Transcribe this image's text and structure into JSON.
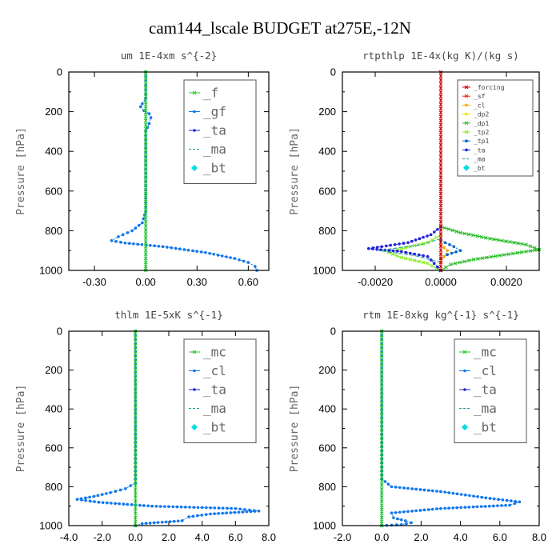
{
  "figure_title": "cam144_lscale  BUDGET at275E,-12N",
  "colors": {
    "f": "#22cc22",
    "gf": "#1177ee",
    "ta": "#2222dd",
    "ma": "#1a9aa0",
    "bt": "#00dddd",
    "forcing": "#cc0000",
    "sf": "#ee2200",
    "cl": "#ffaa00",
    "dp2": "#ffdd00",
    "dp1": "#22bb22",
    "tp2": "#88ee22",
    "tp1": "#0066cc",
    "mc": "#22cc22",
    "clb": "#1177ee"
  },
  "chart_data": [
    {
      "type": "line",
      "title": "um  1E-4xm s^{-2}",
      "ylabel": "Pressure [hPa]",
      "xlim": [
        -0.45,
        0.72
      ],
      "ylim": [
        1000,
        0
      ],
      "xticks": [
        "-0.30",
        "0.00",
        "0.30",
        "0.60"
      ],
      "xtick_values": [
        -0.3,
        0.0,
        0.3,
        0.6
      ],
      "yticks": [
        "0",
        "200",
        "400",
        "600",
        "800",
        "1000"
      ],
      "ytick_values": [
        0,
        200,
        400,
        600,
        800,
        1000
      ],
      "legend": {
        "position": "top-right",
        "size": "large",
        "entries": [
          "_f",
          "_gf",
          "_ta",
          "_ma",
          "_bt"
        ]
      },
      "series": [
        {
          "name": "_gf",
          "color_key": "gf",
          "marker": "dot",
          "points": [
            [
              0.0,
              0
            ],
            [
              0.0,
              130
            ],
            [
              -0.02,
              160
            ],
            [
              -0.03,
              175
            ],
            [
              -0.01,
              195
            ],
            [
              0.02,
              210
            ],
            [
              0.03,
              230
            ],
            [
              0.02,
              260
            ],
            [
              0.0,
              300
            ],
            [
              0.0,
              700
            ],
            [
              -0.02,
              760
            ],
            [
              -0.08,
              800
            ],
            [
              -0.16,
              830
            ],
            [
              -0.2,
              850
            ],
            [
              -0.12,
              862
            ],
            [
              0.1,
              880
            ],
            [
              0.35,
              910
            ],
            [
              0.52,
              940
            ],
            [
              0.6,
              960
            ],
            [
              0.64,
              980
            ],
            [
              0.65,
              1000
            ]
          ]
        },
        {
          "name": "_f",
          "color_key": "f",
          "marker": "x",
          "points": [
            [
              0.0,
              0
            ],
            [
              0.0,
              1000
            ]
          ]
        },
        {
          "name": "_ma",
          "color_key": "ma",
          "marker": "none",
          "points": [
            [
              0.0,
              0
            ],
            [
              0.0,
              1000
            ]
          ]
        }
      ]
    },
    {
      "type": "line",
      "title": "rtpthlp  1E-4x(kg K)/(kg s)",
      "ylabel": "Pressure [hPa]",
      "xlim": [
        -0.003,
        0.003
      ],
      "ylim": [
        1000,
        0
      ],
      "xticks": [
        "-0.0020",
        "0.0000",
        "0.0020"
      ],
      "xtick_values": [
        -0.002,
        0.0,
        0.002
      ],
      "yticks": [
        "0",
        "200",
        "400",
        "600",
        "800",
        "1000"
      ],
      "ytick_values": [
        0,
        200,
        400,
        600,
        800,
        1000
      ],
      "legend": {
        "position": "top-right",
        "size": "small",
        "entries": [
          "_forcing",
          "_sf",
          "_cl",
          "_dp2",
          "_dp1",
          "_tp2",
          "_tp1",
          "_ta",
          "_ma",
          "_bt"
        ]
      },
      "series": [
        {
          "name": "_dp1",
          "color_key": "dp1",
          "marker": "x",
          "points": [
            [
              0.0,
              780
            ],
            [
              0.0006,
              810
            ],
            [
              0.0015,
              840
            ],
            [
              0.0026,
              870
            ],
            [
              0.003,
              895
            ],
            [
              0.0022,
              915
            ],
            [
              0.001,
              945
            ],
            [
              0.0003,
              970
            ],
            [
              0.0,
              1000
            ]
          ]
        },
        {
          "name": "_tp2",
          "color_key": "tp2",
          "marker": "x",
          "points": [
            [
              0.0,
              820
            ],
            [
              -0.0004,
              860
            ],
            [
              -0.0012,
              890
            ],
            [
              -0.0016,
              910
            ],
            [
              -0.0012,
              935
            ],
            [
              -0.0004,
              965
            ],
            [
              0.0,
              1000
            ]
          ]
        },
        {
          "name": "_ta",
          "color_key": "ta",
          "marker": "dot",
          "points": [
            [
              0.0,
              780
            ],
            [
              -0.0003,
              820
            ],
            [
              -0.001,
              860
            ],
            [
              -0.0022,
              890
            ],
            [
              -0.0012,
              905
            ],
            [
              -0.0004,
              930
            ],
            [
              0.0,
              1000
            ]
          ]
        },
        {
          "name": "_ma",
          "color_key": "ma",
          "marker": "none",
          "points": [
            [
              0.0,
              840
            ],
            [
              -0.0006,
              870
            ],
            [
              -0.0019,
              900
            ],
            [
              -0.0008,
              925
            ],
            [
              0.0,
              960
            ]
          ]
        },
        {
          "name": "_tp1",
          "color_key": "tp1",
          "marker": "dot",
          "points": [
            [
              0.0,
              850
            ],
            [
              0.0004,
              880
            ],
            [
              0.0006,
              900
            ],
            [
              0.0002,
              920
            ],
            [
              0.0,
              940
            ]
          ]
        },
        {
          "name": "_cl",
          "color_key": "cl",
          "marker": "dot",
          "points": [
            [
              0.0,
              870
            ],
            [
              0.0002,
              900
            ],
            [
              0.0001,
              930
            ],
            [
              0.0,
              960
            ]
          ]
        },
        {
          "name": "_forcing",
          "color_key": "forcing",
          "marker": "x",
          "points": [
            [
              0.0,
              0
            ],
            [
              0.0,
              1000
            ]
          ]
        }
      ]
    },
    {
      "type": "line",
      "title": "thlm  1E-5xK s^{-1}",
      "ylabel": "Pressure [hPa]",
      "xlim": [
        -4.0,
        8.0
      ],
      "ylim": [
        1000,
        0
      ],
      "xticks": [
        "-4.0",
        "-2.0",
        "0.0",
        "2.0",
        "4.0",
        "6.0",
        "8.0"
      ],
      "xtick_values": [
        -4,
        -2,
        0,
        2,
        4,
        6,
        8
      ],
      "yticks": [
        "0",
        "200",
        "400",
        "600",
        "800",
        "1000"
      ],
      "ytick_values": [
        0,
        200,
        400,
        600,
        800,
        1000
      ],
      "legend": {
        "position": "top-right",
        "size": "large",
        "entries": [
          "_mc",
          "_cl",
          "_ta",
          "_ma",
          "_bt"
        ]
      },
      "series": [
        {
          "name": "_cl",
          "color_key": "gf",
          "marker": "dot",
          "points": [
            [
              0.0,
              0
            ],
            [
              0.0,
              780
            ],
            [
              -0.6,
              810
            ],
            [
              -1.5,
              830
            ],
            [
              -2.5,
              850
            ],
            [
              -3.5,
              865
            ],
            [
              -2.2,
              880
            ],
            [
              1.0,
              900
            ],
            [
              6.0,
              912
            ],
            [
              7.4,
              925
            ],
            [
              4.5,
              940
            ],
            [
              3.2,
              955
            ],
            [
              2.8,
              975
            ],
            [
              0.4,
              990
            ],
            [
              0.0,
              1000
            ]
          ]
        },
        {
          "name": "_mc",
          "color_key": "mc",
          "marker": "x",
          "points": [
            [
              0.0,
              0
            ],
            [
              0.0,
              1000
            ]
          ]
        },
        {
          "name": "_ma",
          "color_key": "ma",
          "marker": "none",
          "points": [
            [
              0.0,
              0
            ],
            [
              0.0,
              1000
            ]
          ]
        }
      ]
    },
    {
      "type": "line",
      "title": "rtm  1E-8xkg kg^{-1} s^{-1}",
      "ylabel": "Pressure [hPa]",
      "xlim": [
        -2.0,
        8.0
      ],
      "ylim": [
        1000,
        0
      ],
      "xticks": [
        "-2.0",
        "0.0",
        "2.0",
        "4.0",
        "6.0",
        "8.0"
      ],
      "xtick_values": [
        -2,
        0,
        2,
        4,
        6,
        8
      ],
      "yticks": [
        "0",
        "200",
        "400",
        "600",
        "800",
        "1000"
      ],
      "ytick_values": [
        0,
        200,
        400,
        600,
        800,
        1000
      ],
      "legend": {
        "position": "top-right",
        "size": "large",
        "entries": [
          "_mc",
          "_cl",
          "_ta",
          "_ma",
          "_bt"
        ]
      },
      "series": [
        {
          "name": "_cl",
          "color_key": "gf",
          "marker": "dot",
          "points": [
            [
              0.0,
              0
            ],
            [
              0.0,
              760
            ],
            [
              0.5,
              800
            ],
            [
              3.0,
              825
            ],
            [
              5.5,
              860
            ],
            [
              7.0,
              878
            ],
            [
              6.5,
              895
            ],
            [
              3.0,
              912
            ],
            [
              0.5,
              935
            ],
            [
              0.6,
              960
            ],
            [
              1.2,
              975
            ],
            [
              1.5,
              985
            ],
            [
              1.0,
              995
            ],
            [
              0.0,
              1000
            ]
          ]
        },
        {
          "name": "_mc",
          "color_key": "mc",
          "marker": "x",
          "points": [
            [
              0.0,
              0
            ],
            [
              0.0,
              1000
            ]
          ]
        },
        {
          "name": "_ma",
          "color_key": "ma",
          "marker": "none",
          "points": [
            [
              0.0,
              0
            ],
            [
              0.0,
              1000
            ]
          ]
        }
      ]
    }
  ],
  "legend_marker_map": {
    "_f": "f",
    "_gf": "gf",
    "_ta": "ta",
    "_ma": "ma",
    "_bt": "bt",
    "_forcing": "forcing",
    "_sf": "sf",
    "_cl": "cl",
    "_dp2": "dp2",
    "_dp1": "dp1",
    "_tp2": "tp2",
    "_tp1": "tp1",
    "_mc": "mc"
  }
}
